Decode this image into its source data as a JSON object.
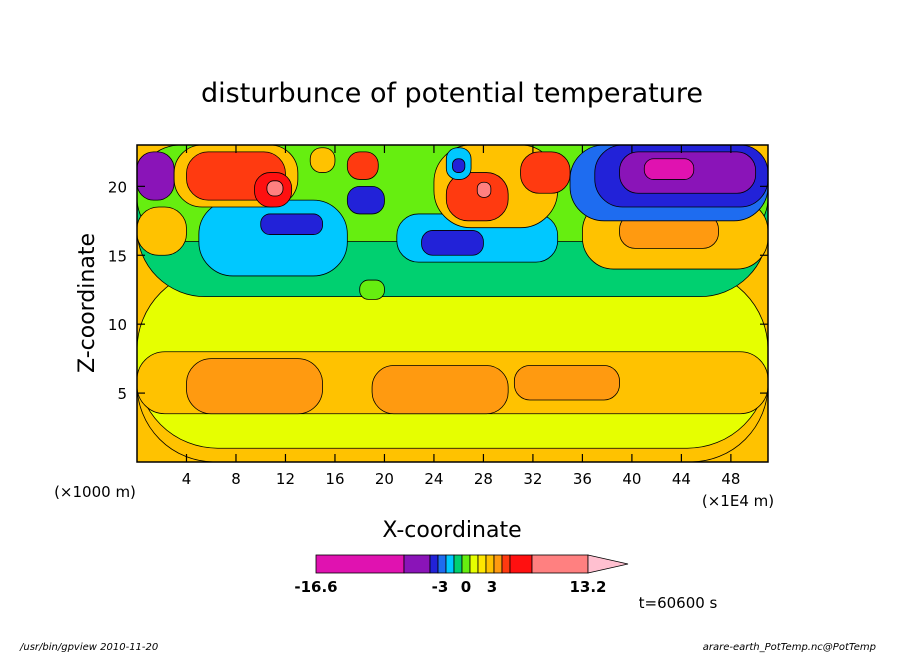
{
  "chart_data": {
    "type": "heatmap",
    "title": "disturbunce of potential temperature",
    "xlabel": "X-coordinate",
    "ylabel": "Z-coordinate",
    "x_unit_left": "(×1000 m)",
    "x_unit_right": "(×1E4 m)",
    "xlim": [
      0,
      51
    ],
    "ylim": [
      0,
      23
    ],
    "x_ticks": [
      4,
      8,
      12,
      16,
      20,
      24,
      28,
      32,
      36,
      40,
      44,
      48
    ],
    "x_tick_labels": [
      "4",
      "8",
      "12",
      "16",
      "20",
      "24",
      "28",
      "32",
      "36",
      "40",
      "44",
      "48"
    ],
    "y_ticks": [
      5,
      10,
      15,
      20
    ],
    "y_tick_labels": [
      "5",
      "10",
      "15",
      "20"
    ],
    "colorbar": {
      "min_label": "-16.6",
      "mid_labels": [
        "-3",
        "0",
        "3"
      ],
      "max_label": "13.2",
      "colors": [
        "#e012b0",
        "#8a14b8",
        "#2222d8",
        "#1e6cf0",
        "#00c8ff",
        "#00d070",
        "#66ee10",
        "#e6ff00",
        "#ffe600",
        "#ffc200",
        "#ff9a10",
        "#ff3a10",
        "#ff1010",
        "#ff8080",
        "#ffc0d0"
      ]
    },
    "annotation": "t=60600 s",
    "footer_left": "/usr/bin/gpview  2010-11-20",
    "footer_right": "arare-earth_PotTemp.nc@PotTemp",
    "blobs": [
      {
        "color": "#ffc200",
        "x": [
          0,
          51
        ],
        "y": [
          0,
          12.5
        ]
      },
      {
        "color": "#e6ff00",
        "x": [
          0,
          51
        ],
        "y": [
          1,
          14
        ]
      },
      {
        "color": "#ffc200",
        "x": [
          0,
          51
        ],
        "y": [
          3.5,
          8
        ]
      },
      {
        "color": "#ff9a10",
        "x": [
          4,
          15
        ],
        "y": [
          3.5,
          7.5
        ]
      },
      {
        "color": "#ff9a10",
        "x": [
          19,
          30
        ],
        "y": [
          3.5,
          7
        ]
      },
      {
        "color": "#ff9a10",
        "x": [
          30.5,
          39
        ],
        "y": [
          4.5,
          7
        ]
      },
      {
        "color": "#00d070",
        "x": [
          0,
          51
        ],
        "y": [
          12,
          23
        ]
      },
      {
        "color": "#66ee10",
        "x": [
          0,
          51
        ],
        "y": [
          16,
          23
        ]
      },
      {
        "color": "#00c8ff",
        "x": [
          5,
          17
        ],
        "y": [
          13.5,
          19
        ]
      },
      {
        "color": "#00c8ff",
        "x": [
          21,
          34
        ],
        "y": [
          14.5,
          18
        ]
      },
      {
        "color": "#ffc200",
        "x": [
          0,
          4
        ],
        "y": [
          15,
          18.5
        ]
      },
      {
        "color": "#ffc200",
        "x": [
          36,
          51
        ],
        "y": [
          14,
          19
        ]
      },
      {
        "color": "#ff9a10",
        "x": [
          39,
          47
        ],
        "y": [
          15.5,
          18
        ]
      },
      {
        "color": "#1e6cf0",
        "x": [
          35,
          51
        ],
        "y": [
          17.5,
          23
        ]
      },
      {
        "color": "#2222d8",
        "x": [
          37,
          51
        ],
        "y": [
          18.5,
          23
        ]
      },
      {
        "color": "#8a14b8",
        "x": [
          39,
          50
        ],
        "y": [
          19.5,
          22.5
        ]
      },
      {
        "color": "#e012b0",
        "x": [
          41,
          45
        ],
        "y": [
          20.5,
          22
        ]
      },
      {
        "color": "#8a14b8",
        "x": [
          0,
          3
        ],
        "y": [
          19,
          22.5
        ]
      },
      {
        "color": "#2222d8",
        "x": [
          10,
          15
        ],
        "y": [
          16.5,
          18
        ]
      },
      {
        "color": "#2222d8",
        "x": [
          23,
          28
        ],
        "y": [
          15,
          16.8
        ]
      },
      {
        "color": "#2222d8",
        "x": [
          17,
          20
        ],
        "y": [
          18,
          20
        ]
      },
      {
        "color": "#ffc200",
        "x": [
          3,
          13
        ],
        "y": [
          18.5,
          23
        ]
      },
      {
        "color": "#ff3a10",
        "x": [
          4,
          12
        ],
        "y": [
          19,
          22.5
        ]
      },
      {
        "color": "#ff1010",
        "x": [
          9.5,
          12.5
        ],
        "y": [
          18.5,
          21
        ]
      },
      {
        "color": "#ff8080",
        "x": [
          10.5,
          11.8
        ],
        "y": [
          19.3,
          20.4
        ]
      },
      {
        "color": "#ffc200",
        "x": [
          24,
          34
        ],
        "y": [
          17,
          23
        ]
      },
      {
        "color": "#ff3a10",
        "x": [
          25,
          30
        ],
        "y": [
          17.5,
          21
        ]
      },
      {
        "color": "#ff8080",
        "x": [
          27.5,
          28.6
        ],
        "y": [
          19.2,
          20.3
        ]
      },
      {
        "color": "#ff3a10",
        "x": [
          31,
          35
        ],
        "y": [
          19.5,
          22.5
        ]
      },
      {
        "color": "#ff3a10",
        "x": [
          17,
          19.5
        ],
        "y": [
          20.5,
          22.5
        ]
      },
      {
        "color": "#ffc200",
        "x": [
          14,
          16
        ],
        "y": [
          21,
          22.8
        ]
      },
      {
        "color": "#00c8ff",
        "x": [
          25,
          27
        ],
        "y": [
          20.5,
          22.8
        ]
      },
      {
        "color": "#2222d8",
        "x": [
          25.5,
          26.5
        ],
        "y": [
          21,
          22
        ]
      },
      {
        "color": "#66ee10",
        "x": [
          18,
          20
        ],
        "y": [
          11.8,
          13.2
        ]
      }
    ]
  }
}
